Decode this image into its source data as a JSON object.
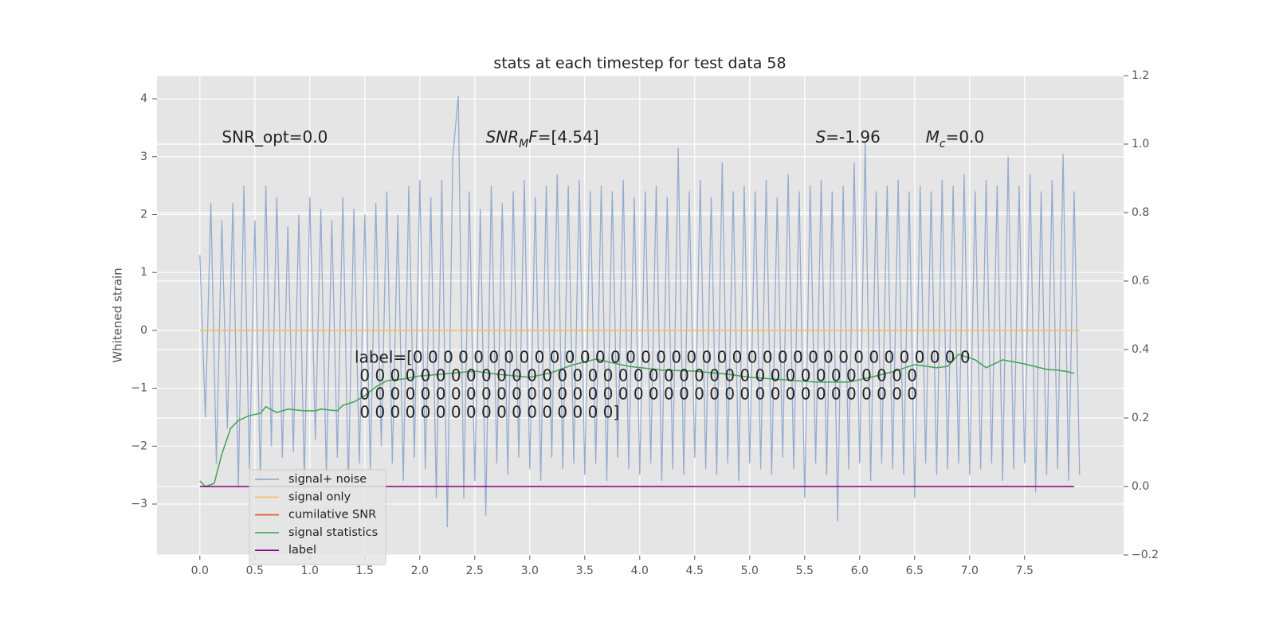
{
  "chart_data": {
    "type": "line",
    "title": "stats at each timestep for test data 58",
    "ylabel": "Whitened strain",
    "grid": true,
    "background": "#e5e5e5",
    "legend_loc": "lower left",
    "xlim": [
      -0.39,
      8.4
    ],
    "ylim": [
      -3.88,
      4.4
    ],
    "y2lim": [
      -0.2,
      1.2
    ],
    "xticks": [
      {
        "value": 0,
        "label": "0.0"
      },
      {
        "value": 0.5,
        "label": "0.5"
      },
      {
        "value": 1,
        "label": "1.0"
      },
      {
        "value": 1.5,
        "label": "1.5"
      },
      {
        "value": 2,
        "label": "2.0"
      },
      {
        "value": 2.5,
        "label": "2.5"
      },
      {
        "value": 3,
        "label": "3.0"
      },
      {
        "value": 3.5,
        "label": "3.5"
      },
      {
        "value": 4,
        "label": "4.0"
      },
      {
        "value": 4.5,
        "label": "4.5"
      },
      {
        "value": 5,
        "label": "5.0"
      },
      {
        "value": 5.5,
        "label": "5.5"
      },
      {
        "value": 6,
        "label": "6.0"
      },
      {
        "value": 6.5,
        "label": "6.5"
      },
      {
        "value": 7,
        "label": "7.0"
      },
      {
        "value": 7.5,
        "label": "7.5"
      }
    ],
    "yticks": [
      {
        "value": -3,
        "label": "−3"
      },
      {
        "value": -2,
        "label": "−2"
      },
      {
        "value": -1,
        "label": "−1"
      },
      0,
      1,
      2,
      3,
      4
    ],
    "y2ticks": [
      {
        "value": -0.2,
        "label": "−0.2"
      },
      {
        "value": 0,
        "label": "0.0"
      },
      {
        "value": 0.2,
        "label": "0.2"
      },
      {
        "value": 0.4,
        "label": "0.4"
      },
      {
        "value": 0.6,
        "label": "0.6"
      },
      {
        "value": 0.8,
        "label": "0.8"
      },
      {
        "value": 1.0,
        "label": "1.0"
      },
      {
        "value": 1.2,
        "label": "1.2"
      }
    ],
    "annotations": [
      {
        "x": 0.2,
        "segments": [
          {
            "text": "SNR_opt=0.0",
            "style": "normal"
          }
        ]
      },
      {
        "x": 2.6,
        "segments": [
          {
            "text": "SNR",
            "style": "italic"
          },
          {
            "text": "M",
            "style": "italic-sub"
          },
          {
            "text": "F",
            "style": "italic"
          },
          {
            "text": "=[4.54]",
            "style": "normal"
          }
        ]
      },
      {
        "x": 5.6,
        "segments": [
          {
            "text": "S",
            "style": "italic"
          },
          {
            "text": "=-1.96",
            "style": "normal"
          }
        ]
      },
      {
        "x": 6.6,
        "segments": [
          {
            "text": "M",
            "style": "italic"
          },
          {
            "text": "c",
            "style": "italic-sub"
          },
          {
            "text": "=0.0",
            "style": "normal"
          }
        ]
      }
    ],
    "label_text": [
      "label=[0 0 0 0 0 0 0 0 0 0 0 0 0 0 0 0 0 0 0 0 0 0 0 0 0 0 0 0 0 0 0 0 0 0 0 0 0",
      " 0 0 0 0 0 0 0 0 0 0 0 0 0 0 0 0 0 0 0 0 0 0 0 0 0 0 0 0 0 0 0 0 0 0 0 0 0",
      " 0 0 0 0 0 0 0 0 0 0 0 0 0 0 0 0 0 0 0 0 0 0 0 0 0 0 0 0 0 0 0 0 0 0 0 0 0",
      " 0 0 0 0 0 0 0 0 0 0 0 0 0 0 0 0 0]"
    ],
    "series": [
      {
        "name": "signal+ noise",
        "color": "#8da4cb",
        "x": [
          0,
          0.05,
          0.1,
          0.15,
          0.2,
          0.25,
          0.3,
          0.35,
          0.4,
          0.45,
          0.5,
          0.55,
          0.6,
          0.65,
          0.7,
          0.75,
          0.8,
          0.85,
          0.9,
          0.95,
          1.0,
          1.05,
          1.1,
          1.15,
          1.2,
          1.25,
          1.3,
          1.35,
          1.4,
          1.45,
          1.5,
          1.55,
          1.6,
          1.65,
          1.7,
          1.75,
          1.8,
          1.85,
          1.9,
          1.95,
          2.0,
          2.05,
          2.1,
          2.15,
          2.2,
          2.25,
          2.3,
          2.35,
          2.4,
          2.45,
          2.5,
          2.55,
          2.6,
          2.65,
          2.7,
          2.75,
          2.8,
          2.85,
          2.9,
          2.95,
          3.0,
          3.05,
          3.1,
          3.15,
          3.2,
          3.25,
          3.3,
          3.35,
          3.4,
          3.45,
          3.5,
          3.55,
          3.6,
          3.65,
          3.7,
          3.75,
          3.8,
          3.85,
          3.9,
          3.95,
          4.0,
          4.05,
          4.1,
          4.15,
          4.2,
          4.25,
          4.3,
          4.35,
          4.4,
          4.45,
          4.5,
          4.55,
          4.6,
          4.65,
          4.7,
          4.75,
          4.8,
          4.85,
          4.9,
          4.95,
          5.0,
          5.05,
          5.1,
          5.15,
          5.2,
          5.25,
          5.3,
          5.35,
          5.4,
          5.45,
          5.5,
          5.55,
          5.6,
          5.65,
          5.7,
          5.75,
          5.8,
          5.85,
          5.9,
          5.95,
          6.0,
          6.05,
          6.1,
          6.15,
          6.2,
          6.25,
          6.3,
          6.35,
          6.4,
          6.45,
          6.5,
          6.55,
          6.6,
          6.65,
          6.7,
          6.75,
          6.8,
          6.85,
          6.9,
          6.95,
          7.0,
          7.05,
          7.1,
          7.15,
          7.2,
          7.25,
          7.3,
          7.35,
          7.4,
          7.45,
          7.5,
          7.55,
          7.6,
          7.65,
          7.7,
          7.75,
          7.8,
          7.85,
          7.9,
          7.95,
          8.0
        ],
        "values": [
          1.3,
          -1.5,
          2.2,
          -2.3,
          1.9,
          -1.7,
          2.2,
          -2.7,
          2.5,
          -2.4,
          1.9,
          -2.6,
          2.5,
          -2.0,
          2.3,
          -2.2,
          1.8,
          -2.1,
          2.0,
          -2.6,
          2.3,
          -1.9,
          2.1,
          -2.5,
          1.9,
          -2.2,
          2.3,
          -2.7,
          2.1,
          -2.3,
          2.0,
          -2.4,
          2.2,
          -2.0,
          2.4,
          -2.3,
          2.0,
          -2.6,
          2.5,
          -2.2,
          2.6,
          -2.4,
          2.3,
          -2.9,
          2.6,
          -3.4,
          3.0,
          4.05,
          -2.9,
          2.4,
          -2.6,
          2.1,
          -3.2,
          2.5,
          -2.3,
          2.2,
          -2.5,
          2.4,
          -2.2,
          2.6,
          -2.4,
          2.3,
          -2.6,
          2.5,
          -2.2,
          2.7,
          -2.4,
          2.5,
          -2.3,
          2.6,
          -2.5,
          2.4,
          -2.3,
          2.5,
          -2.6,
          2.4,
          -2.2,
          2.6,
          -2.4,
          2.3,
          -2.5,
          2.4,
          -2.3,
          2.5,
          -2.6,
          2.3,
          -2.4,
          3.15,
          -2.5,
          2.4,
          -2.2,
          2.6,
          -2.4,
          2.3,
          -2.5,
          2.9,
          -2.3,
          2.4,
          -2.6,
          2.5,
          -2.3,
          2.4,
          -2.4,
          2.6,
          -2.5,
          2.3,
          -2.2,
          2.7,
          -2.4,
          2.4,
          -2.9,
          2.5,
          -2.3,
          2.6,
          -2.5,
          2.4,
          -3.3,
          2.5,
          -2.4,
          2.9,
          -2.3,
          3.25,
          -2.6,
          2.4,
          -2.3,
          2.5,
          -2.4,
          2.6,
          -2.5,
          2.4,
          -2.9,
          2.5,
          -2.3,
          2.4,
          -2.5,
          2.6,
          -2.4,
          2.5,
          -2.3,
          2.7,
          -2.5,
          2.4,
          -2.4,
          2.6,
          -2.3,
          2.5,
          -2.6,
          3.0,
          -2.4,
          2.5,
          -2.3,
          2.7,
          -2.8,
          2.4,
          -2.5,
          2.6,
          -2.4,
          3.05,
          -2.6,
          2.4,
          -2.5
        ]
      },
      {
        "name": "signal only",
        "color": "#f2c25e",
        "x": [
          0,
          8.0
        ],
        "values": [
          0,
          0
        ]
      },
      {
        "name": "cumilative SNR",
        "color": "#e24a33",
        "x": [],
        "values": []
      },
      {
        "name": "signal statistics",
        "color": "#4aa55a",
        "axis": "y2",
        "x": [
          0,
          0.05,
          0.13,
          0.2,
          0.28,
          0.35,
          0.45,
          0.55,
          0.6,
          0.7,
          0.8,
          0.95,
          1.05,
          1.1,
          1.25,
          1.3,
          1.4,
          1.5,
          1.6,
          1.7,
          1.85,
          2.0,
          2.2,
          2.5,
          2.7,
          3.0,
          3.2,
          3.4,
          3.6,
          3.9,
          4.2,
          4.5,
          4.8,
          5.0,
          5.3,
          5.6,
          5.9,
          6.1,
          6.3,
          6.5,
          6.7,
          6.8,
          6.9,
          7.05,
          7.15,
          7.3,
          7.5,
          7.7,
          7.8,
          7.9,
          7.95
        ],
        "values": [
          0.016,
          0,
          0.009,
          0.095,
          0.17,
          0.193,
          0.207,
          0.214,
          0.233,
          0.216,
          0.226,
          0.221,
          0.221,
          0.226,
          0.221,
          0.237,
          0.247,
          0.265,
          0.291,
          0.309,
          0.314,
          0.323,
          0.328,
          0.337,
          0.328,
          0.319,
          0.333,
          0.356,
          0.372,
          0.351,
          0.34,
          0.337,
          0.328,
          0.319,
          0.312,
          0.305,
          0.305,
          0.319,
          0.335,
          0.356,
          0.347,
          0.351,
          0.386,
          0.37,
          0.347,
          0.37,
          0.358,
          0.342,
          0.34,
          0.335,
          0.33
        ]
      },
      {
        "name": "label",
        "color": "#800080",
        "axis": "y2",
        "x": [
          0,
          7.95
        ],
        "values": [
          0,
          0
        ]
      }
    ]
  }
}
